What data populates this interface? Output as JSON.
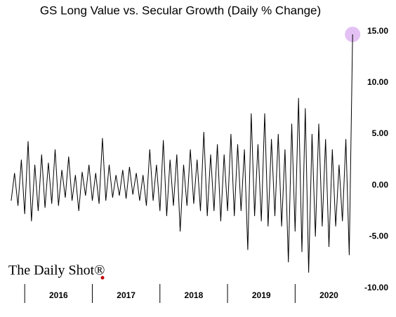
{
  "chart_data": {
    "type": "line",
    "title": "GS Long Value vs. Secular Growth (Daily % Change)",
    "logo": "The Daily Shot®",
    "x": [
      2015.8,
      2015.85,
      2015.9,
      2015.95,
      2016.0,
      2016.05,
      2016.1,
      2016.15,
      2016.2,
      2016.25,
      2016.3,
      2016.35,
      2016.4,
      2016.45,
      2016.5,
      2016.55,
      2016.6,
      2016.65,
      2016.7,
      2016.75,
      2016.8,
      2016.85,
      2016.9,
      2016.95,
      2017.0,
      2017.05,
      2017.1,
      2017.15,
      2017.2,
      2017.25,
      2017.3,
      2017.35,
      2017.4,
      2017.45,
      2017.5,
      2017.55,
      2017.6,
      2017.65,
      2017.7,
      2017.75,
      2017.8,
      2017.85,
      2017.9,
      2017.95,
      2018.0,
      2018.05,
      2018.1,
      2018.15,
      2018.2,
      2018.25,
      2018.3,
      2018.35,
      2018.4,
      2018.45,
      2018.5,
      2018.55,
      2018.6,
      2018.65,
      2018.7,
      2018.75,
      2018.8,
      2018.85,
      2018.9,
      2018.95,
      2019.0,
      2019.05,
      2019.1,
      2019.15,
      2019.2,
      2019.25,
      2019.3,
      2019.35,
      2019.4,
      2019.45,
      2019.5,
      2019.55,
      2019.6,
      2019.65,
      2019.7,
      2019.75,
      2019.8,
      2019.85,
      2019.9,
      2019.95,
      2020.0,
      2020.05,
      2020.1,
      2020.15,
      2020.2,
      2020.25,
      2020.3,
      2020.35,
      2020.4,
      2020.45,
      2020.5,
      2020.55,
      2020.6,
      2020.65,
      2020.7,
      2020.75,
      2020.8,
      2020.85
    ],
    "series": [
      {
        "color": "#000000",
        "values": [
          -1.5,
          1.2,
          -2.0,
          2.5,
          -2.8,
          4.3,
          -3.5,
          2.0,
          -2.5,
          3.0,
          -2.2,
          2.2,
          -1.8,
          3.5,
          -2.0,
          1.5,
          -1.2,
          2.8,
          -1.5,
          1.0,
          -2.5,
          1.3,
          -1.0,
          2.0,
          -1.5,
          1.2,
          -1.8,
          4.6,
          -1.5,
          2.0,
          -1.2,
          1.0,
          -1.0,
          1.5,
          -1.3,
          1.8,
          -0.9,
          1.2,
          -1.5,
          1.0,
          -2.0,
          3.5,
          -1.5,
          2.0,
          -2.5,
          4.4,
          -3.0,
          2.5,
          -2.0,
          3.0,
          -4.5,
          2.0,
          -2.0,
          3.5,
          -1.8,
          2.5,
          -2.5,
          5.2,
          -3.0,
          3.0,
          -2.5,
          4.0,
          -3.5,
          3.0,
          -2.5,
          5.0,
          -3.0,
          4.0,
          -2.5,
          3.5,
          -6.3,
          7.0,
          -3.0,
          4.0,
          -3.5,
          7.0,
          -4.0,
          4.5,
          -3.0,
          5.0,
          -4.0,
          3.5,
          -7.5,
          6.0,
          -4.5,
          8.5,
          -6.5,
          7.5,
          -8.5,
          5.0,
          -5.0,
          6.0,
          -4.0,
          4.5,
          -6.0,
          3.5,
          -4.0,
          2.0,
          -3.5,
          4.5,
          -6.8,
          14.7
        ]
      }
    ],
    "xlim": [
      2015.78,
      2020.9
    ],
    "xticks": [
      {
        "value": 2016.5,
        "label": "2016"
      },
      {
        "value": 2017.5,
        "label": "2017"
      },
      {
        "value": 2018.5,
        "label": "2018"
      },
      {
        "value": 2019.5,
        "label": "2019"
      },
      {
        "value": 2020.5,
        "label": "2020"
      }
    ],
    "ylim": [
      -10.3,
      16
    ],
    "yticks": [
      {
        "value": 15,
        "label": "15.00"
      },
      {
        "value": 10,
        "label": "10.00"
      },
      {
        "value": 5,
        "label": "5.00"
      },
      {
        "value": 0,
        "label": "0.00"
      },
      {
        "value": -5,
        "label": "-5.00"
      },
      {
        "value": -10,
        "label": "-10.00"
      }
    ]
  }
}
